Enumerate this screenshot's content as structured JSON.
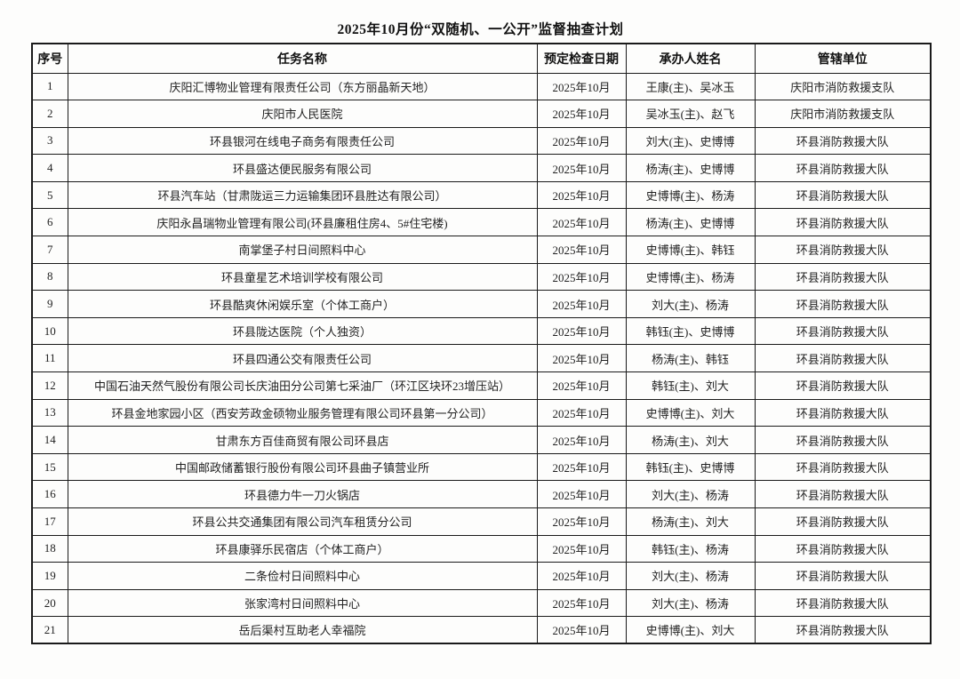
{
  "page": {
    "title": "2025年10月份“双随机、一公开”监督抽查计划"
  },
  "colors": {
    "background": "#fdfdfc",
    "border": "#1a1a1a",
    "text": "#222222"
  },
  "table": {
    "columns": [
      "序号",
      "任务名称",
      "预定检查日期",
      "承办人姓名",
      "管辖单位"
    ],
    "rows": [
      {
        "no": "1",
        "task": "庆阳汇博物业管理有限责任公司（东方丽晶新天地）",
        "date": "2025年10月",
        "handlers": "王康(主)、吴冰玉",
        "unit": "庆阳市消防救援支队"
      },
      {
        "no": "2",
        "task": "庆阳市人民医院",
        "date": "2025年10月",
        "handlers": "吴冰玉(主)、赵飞",
        "unit": "庆阳市消防救援支队"
      },
      {
        "no": "3",
        "task": "环县银河在线电子商务有限责任公司",
        "date": "2025年10月",
        "handlers": "刘大(主)、史博博",
        "unit": "环县消防救援大队"
      },
      {
        "no": "4",
        "task": "环县盛达便民服务有限公司",
        "date": "2025年10月",
        "handlers": "杨涛(主)、史博博",
        "unit": "环县消防救援大队"
      },
      {
        "no": "5",
        "task": "环县汽车站（甘肃陇运三力运输集团环县胜达有限公司）",
        "date": "2025年10月",
        "handlers": "史博博(主)、杨涛",
        "unit": "环县消防救援大队"
      },
      {
        "no": "6",
        "task": "庆阳永昌瑞物业管理有限公司(环县廉租住房4、5#住宅楼)",
        "date": "2025年10月",
        "handlers": "杨涛(主)、史博博",
        "unit": "环县消防救援大队"
      },
      {
        "no": "7",
        "task": "南掌堡子村日间照料中心",
        "date": "2025年10月",
        "handlers": "史博博(主)、韩钰",
        "unit": "环县消防救援大队"
      },
      {
        "no": "8",
        "task": "环县童星艺术培训学校有限公司",
        "date": "2025年10月",
        "handlers": "史博博(主)、杨涛",
        "unit": "环县消防救援大队"
      },
      {
        "no": "9",
        "task": "环县酷爽休闲娱乐室（个体工商户）",
        "date": "2025年10月",
        "handlers": "刘大(主)、杨涛",
        "unit": "环县消防救援大队"
      },
      {
        "no": "10",
        "task": "环县陇达医院（个人独资）",
        "date": "2025年10月",
        "handlers": "韩钰(主)、史博博",
        "unit": "环县消防救援大队"
      },
      {
        "no": "11",
        "task": "环县四通公交有限责任公司",
        "date": "2025年10月",
        "handlers": "杨涛(主)、韩钰",
        "unit": "环县消防救援大队"
      },
      {
        "no": "12",
        "task": "中国石油天然气股份有限公司长庆油田分公司第七采油厂（环江区块环23增压站）",
        "date": "2025年10月",
        "handlers": "韩钰(主)、刘大",
        "unit": "环县消防救援大队"
      },
      {
        "no": "13",
        "task": "环县金地家园小区（西安芳政金硕物业服务管理有限公司环县第一分公司）",
        "date": "2025年10月",
        "handlers": "史博博(主)、刘大",
        "unit": "环县消防救援大队"
      },
      {
        "no": "14",
        "task": "甘肃东方百佳商贸有限公司环县店",
        "date": "2025年10月",
        "handlers": "杨涛(主)、刘大",
        "unit": "环县消防救援大队"
      },
      {
        "no": "15",
        "task": "中国邮政储蓄银行股份有限公司环县曲子镇营业所",
        "date": "2025年10月",
        "handlers": "韩钰(主)、史博博",
        "unit": "环县消防救援大队"
      },
      {
        "no": "16",
        "task": "环县德力牛一刀火锅店",
        "date": "2025年10月",
        "handlers": "刘大(主)、杨涛",
        "unit": "环县消防救援大队"
      },
      {
        "no": "17",
        "task": "环县公共交通集团有限公司汽车租赁分公司",
        "date": "2025年10月",
        "handlers": "杨涛(主)、刘大",
        "unit": "环县消防救援大队"
      },
      {
        "no": "18",
        "task": "环县康驿乐民宿店（个体工商户）",
        "date": "2025年10月",
        "handlers": "韩钰(主)、杨涛",
        "unit": "环县消防救援大队"
      },
      {
        "no": "19",
        "task": "二条俭村日间照料中心",
        "date": "2025年10月",
        "handlers": "刘大(主)、杨涛",
        "unit": "环县消防救援大队"
      },
      {
        "no": "20",
        "task": "张家湾村日间照料中心",
        "date": "2025年10月",
        "handlers": "刘大(主)、杨涛",
        "unit": "环县消防救援大队"
      },
      {
        "no": "21",
        "task": "岳后渠村互助老人幸福院",
        "date": "2025年10月",
        "handlers": "史博博(主)、刘大",
        "unit": "环县消防救援大队"
      }
    ]
  }
}
